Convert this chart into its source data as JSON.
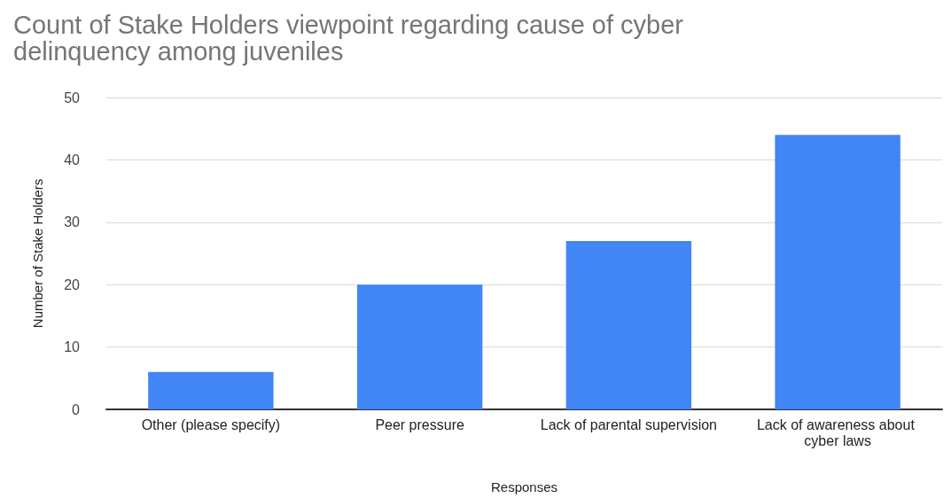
{
  "chart_data": {
    "type": "bar",
    "title": "Count of Stake Holders viewpoint regarding cause of cyber delinquency among juveniles",
    "xlabel": "Responses",
    "ylabel": "Number of Stake Holders",
    "categories": [
      "Other (please specify)",
      "Peer pressure",
      "Lack of parental supervision",
      "Lack of awareness about cyber laws"
    ],
    "values": [
      6,
      20,
      27,
      44
    ],
    "color": "#4285f4",
    "ylim": [
      0,
      50
    ],
    "yticks": [
      0,
      10,
      20,
      30,
      40,
      50
    ],
    "grid": "y",
    "legend": false
  }
}
